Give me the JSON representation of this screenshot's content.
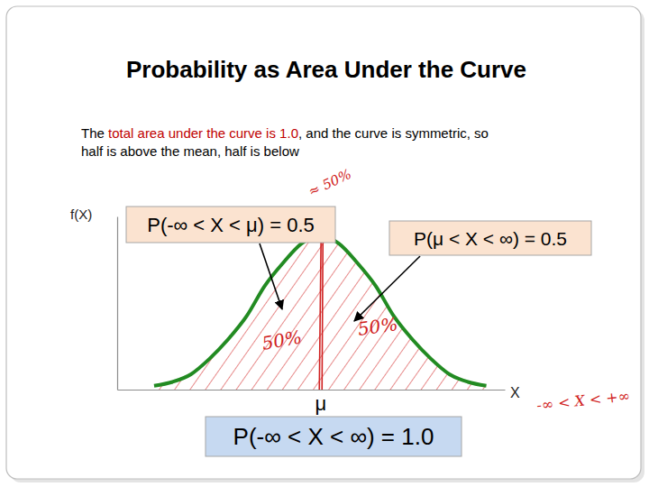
{
  "chart_data": {
    "type": "line",
    "title": "Probability as Area Under the Curve",
    "subtitle": [
      [
        {
          "text": "The "
        },
        {
          "text": "total area under the curve is 1.0",
          "color": "#c00000"
        },
        {
          "text": ", and the curve is symmetric, so"
        }
      ],
      [
        {
          "text": "half is above the mean, half is below"
        }
      ]
    ],
    "x_label": "X",
    "y_label": "f(X)",
    "x": [
      -2.7,
      -2.4,
      -2.1,
      -1.8,
      -1.5,
      -1.2,
      -0.9,
      -0.6,
      -0.3,
      0,
      0.3,
      0.6,
      0.9,
      1.2,
      1.5,
      1.8,
      2.1,
      2.4,
      2.7
    ],
    "values": [
      0.01,
      0.02,
      0.04,
      0.08,
      0.13,
      0.19,
      0.27,
      0.33,
      0.38,
      0.4,
      0.38,
      0.33,
      0.27,
      0.19,
      0.13,
      0.08,
      0.04,
      0.02,
      0.01
    ],
    "color": "#228b22",
    "xlim": [
      -3.3,
      3.0
    ],
    "ylim": [
      0,
      0.45
    ],
    "xticks": [
      {
        "value": 0,
        "label": "μ"
      }
    ],
    "yticks": [],
    "tick_labels": "x",
    "grid": false,
    "annotations": [
      {
        "text": "P(-∞ < X < μ) = 0.5"
      },
      {
        "text": "P(μ < X < ∞) = 0.5"
      },
      {
        "text": "P(-∞ < X < ∞) = 1.0"
      },
      {
        "text": "≈ 50%",
        "color": "#d02020"
      },
      {
        "text": "50%",
        "color": "#d02020"
      },
      {
        "text": "50%",
        "color": "#d02020"
      },
      {
        "text": "-∞ < X < +∞",
        "color": "#d02020"
      }
    ]
  }
}
